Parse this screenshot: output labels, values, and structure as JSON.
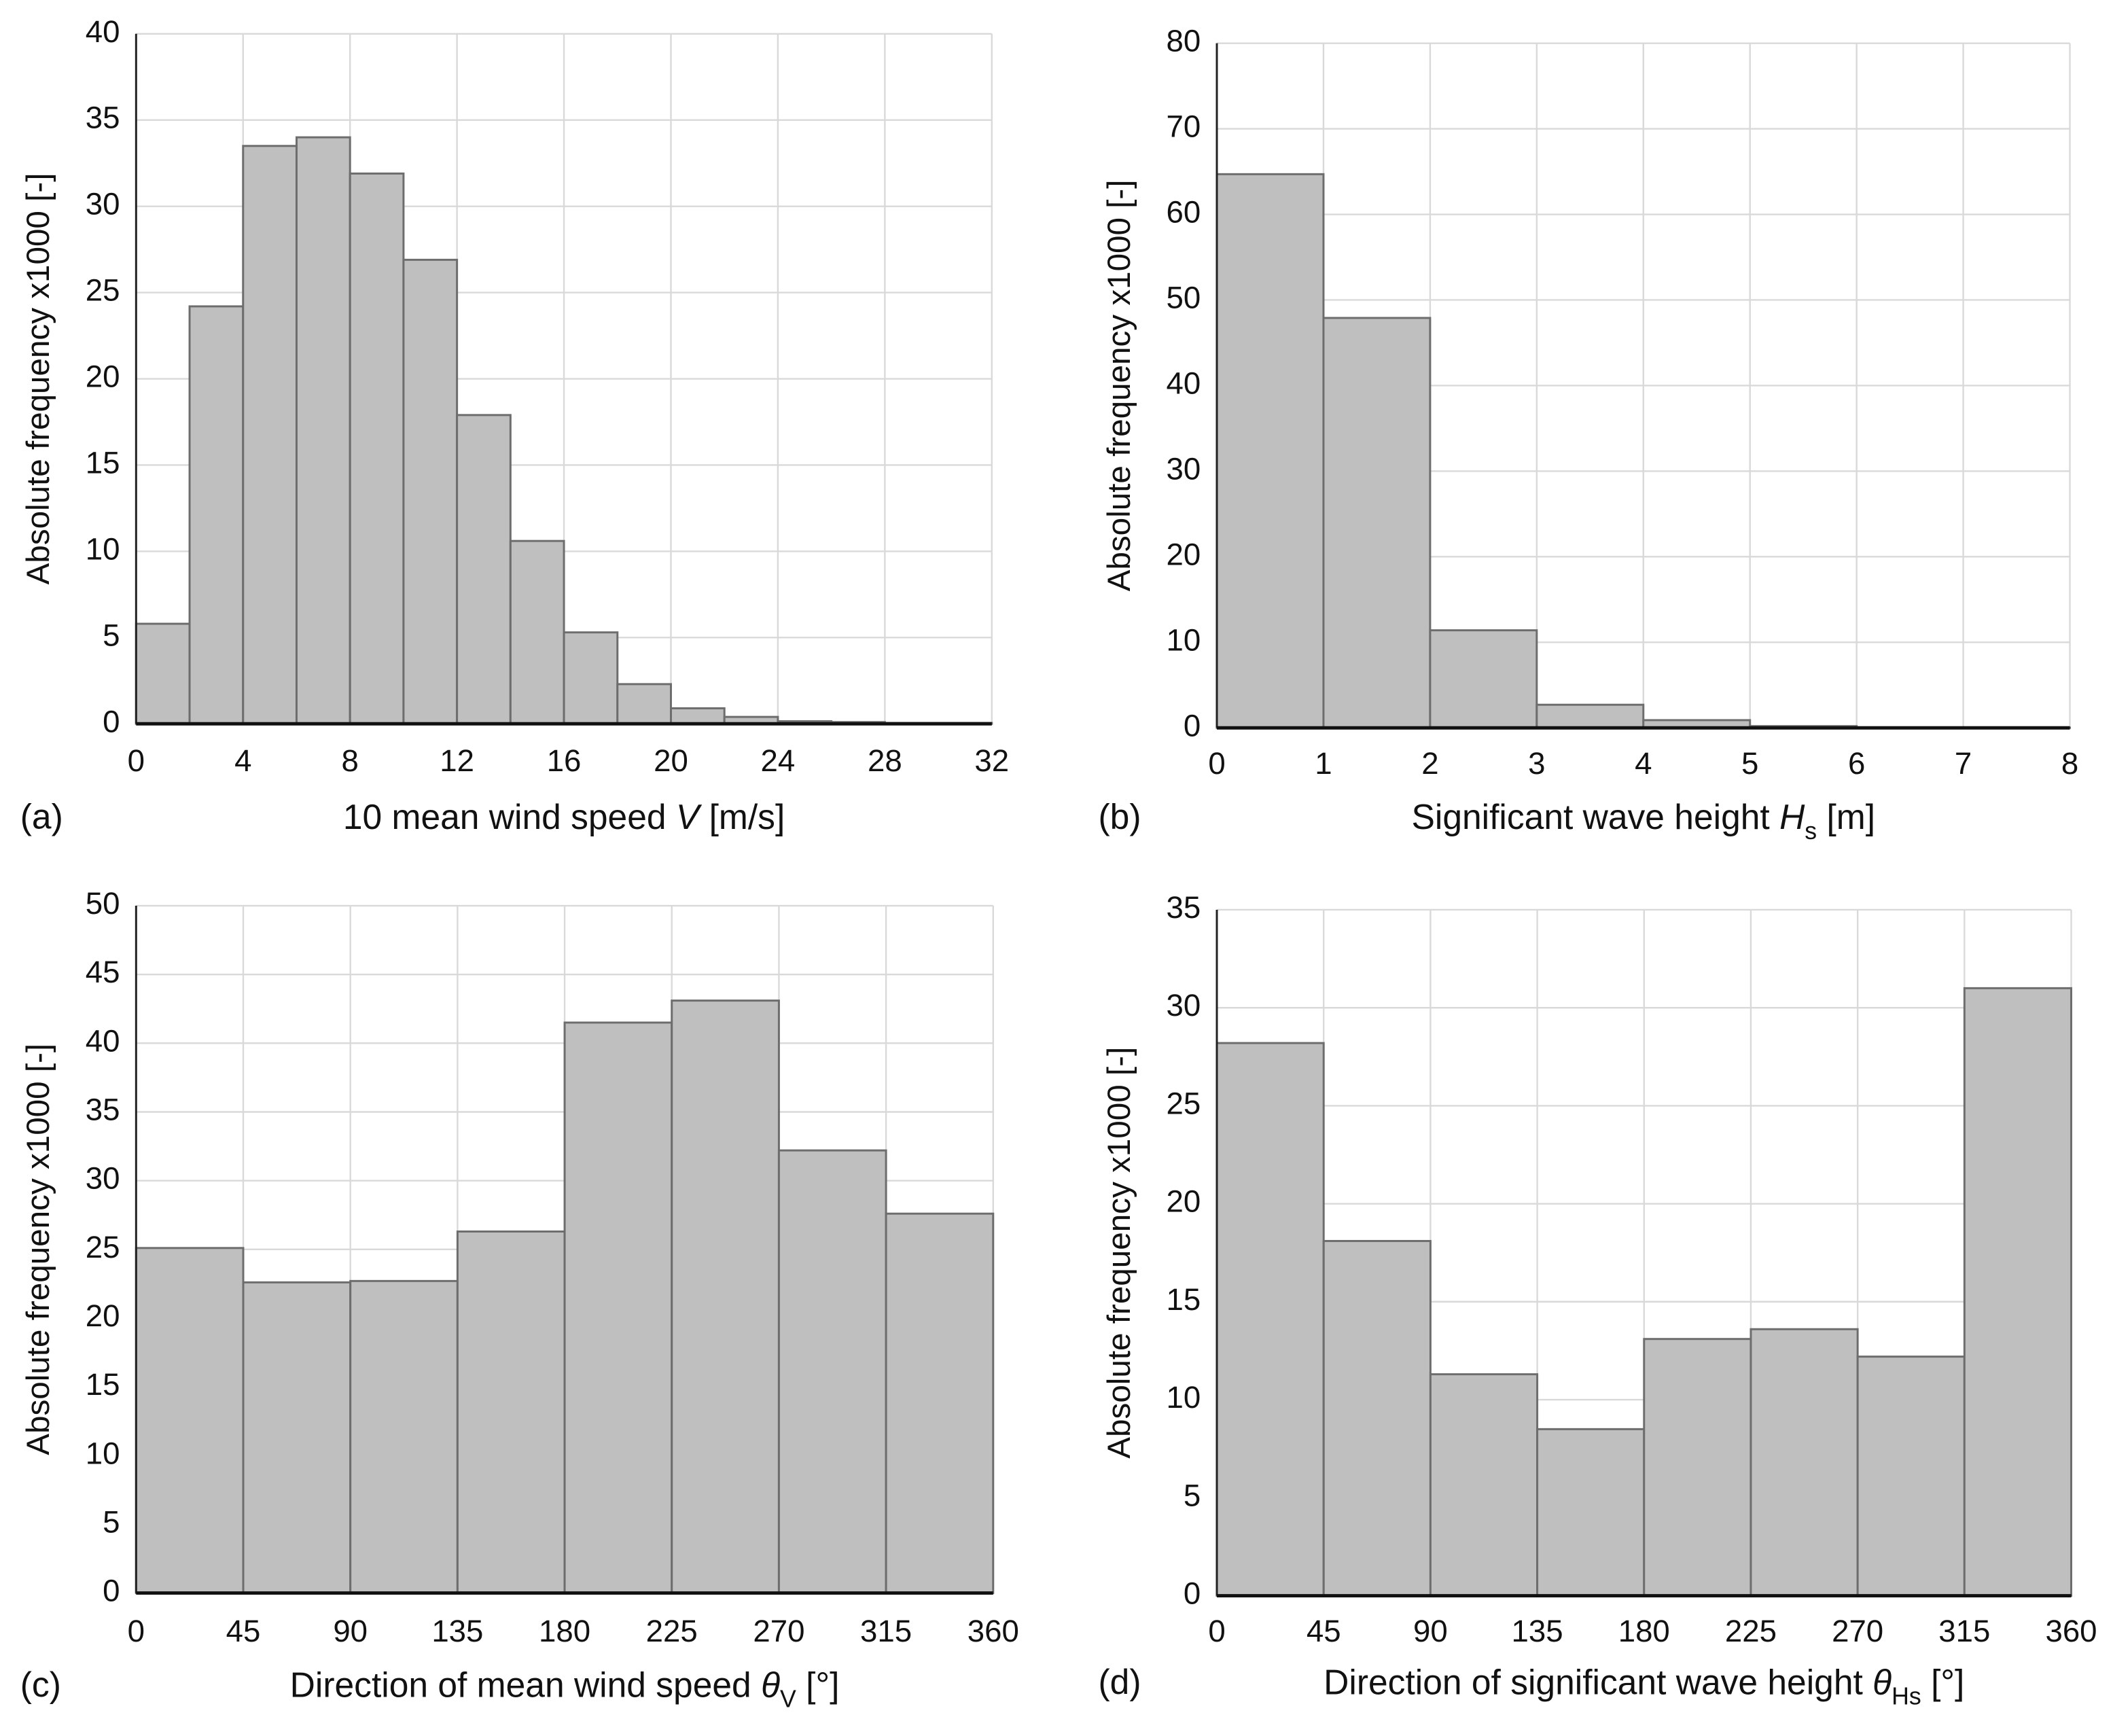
{
  "chart_data": [
    {
      "type": "histogram",
      "panel": "(a)",
      "ylabel": "Absolute frequency x1000 [-]",
      "xlabel": [
        {
          "text": "10 mean wind speed "
        },
        {
          "text": "V",
          "italic": true
        },
        {
          "text": " [m/s]"
        }
      ],
      "bins": [
        0,
        2,
        4,
        6,
        8,
        10,
        12,
        14,
        16,
        18,
        20,
        22,
        24,
        26,
        28,
        30,
        32
      ],
      "values": [
        5.8,
        24.2,
        33.5,
        34.0,
        31.9,
        26.9,
        17.9,
        10.6,
        5.3,
        2.3,
        0.9,
        0.4,
        0.15,
        0.1,
        0.05,
        0.05
      ],
      "color": "#bfbfbf",
      "xlim": [
        0,
        32
      ],
      "xticks": [
        0,
        4,
        8,
        12,
        16,
        20,
        24,
        28,
        32
      ],
      "ylim": [
        0,
        40
      ],
      "yticks": [
        0,
        5,
        10,
        15,
        20,
        25,
        30,
        35,
        40
      ],
      "grid": true
    },
    {
      "type": "histogram",
      "panel": "(b)",
      "ylabel": "Absolute frequency x1000 [-]",
      "xlabel": [
        {
          "text": "Significant wave height "
        },
        {
          "text": "H",
          "italic": true
        },
        {
          "text": "s",
          "sub": true
        },
        {
          "text": " [m]"
        }
      ],
      "bins": [
        0,
        1,
        2,
        3,
        4,
        5,
        6,
        7,
        8
      ],
      "values": [
        64.7,
        47.9,
        11.4,
        2.7,
        0.9,
        0.2,
        0.05,
        0.02
      ],
      "color": "#bfbfbf",
      "xlim": [
        0,
        8
      ],
      "xticks": [
        0,
        1,
        2,
        3,
        4,
        5,
        6,
        7,
        8
      ],
      "ylim": [
        0,
        80
      ],
      "yticks": [
        0,
        10,
        20,
        30,
        40,
        50,
        60,
        70,
        80
      ],
      "grid": true
    },
    {
      "type": "histogram",
      "panel": "(c)",
      "ylabel": "Absolute frequency x1000 [-]",
      "xlabel": [
        {
          "text": "Direction of mean wind speed "
        },
        {
          "text": "θ",
          "italic": true
        },
        {
          "text": "V",
          "sub": true
        },
        {
          "text": " [°]"
        }
      ],
      "bins": [
        0,
        45,
        90,
        135,
        180,
        225,
        270,
        315,
        360
      ],
      "values": [
        25.1,
        22.6,
        22.7,
        26.3,
        41.5,
        43.1,
        32.2,
        27.6
      ],
      "color": "#bfbfbf",
      "xlim": [
        0,
        360
      ],
      "xticks": [
        0,
        45,
        90,
        135,
        180,
        225,
        270,
        315,
        360
      ],
      "ylim": [
        0,
        50
      ],
      "yticks": [
        0,
        5,
        10,
        15,
        20,
        25,
        30,
        35,
        40,
        45,
        50
      ],
      "grid": true
    },
    {
      "type": "histogram",
      "panel": "(d)",
      "ylabel": "Absolute frequency x1000 [-]",
      "xlabel": [
        {
          "text": "Direction of significant wave height "
        },
        {
          "text": "θ",
          "italic": true
        },
        {
          "text": "Hs",
          "sub": true
        },
        {
          "text": " [°]"
        }
      ],
      "bins": [
        0,
        45,
        90,
        135,
        180,
        225,
        270,
        315,
        360
      ],
      "values": [
        28.2,
        18.1,
        11.3,
        8.5,
        13.1,
        13.6,
        12.2,
        31.0
      ],
      "color": "#bfbfbf",
      "xlim": [
        0,
        360
      ],
      "xticks": [
        0,
        45,
        90,
        135,
        180,
        225,
        270,
        315,
        360
      ],
      "ylim": [
        0,
        35
      ],
      "yticks": [
        0,
        5,
        10,
        15,
        20,
        25,
        30,
        35
      ],
      "grid": true
    }
  ]
}
